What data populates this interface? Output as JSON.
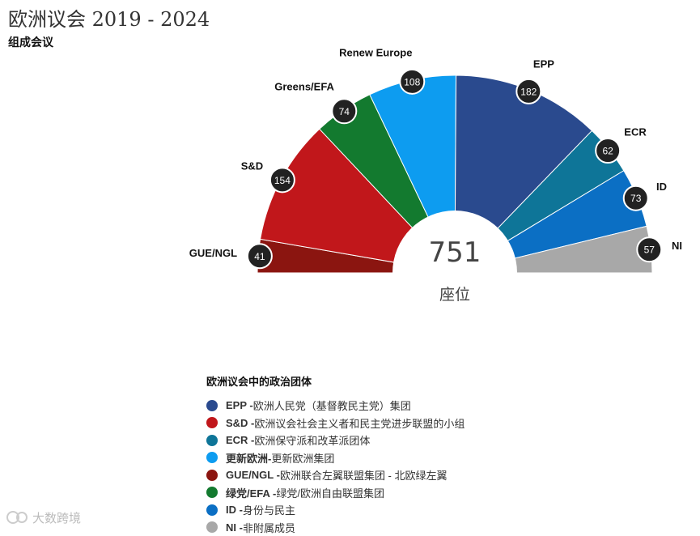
{
  "title": "欧洲议会 2019 - 2024",
  "subtitle": "组成会议",
  "chart_data": {
    "type": "parliament-semicircle",
    "title": "欧洲议会 2019 - 2024",
    "subtitle": "组成会议",
    "total": 751,
    "total_label": "751",
    "seats_label": "座位",
    "series": [
      {
        "name": "GUE/NGL",
        "label": "GUE/NGL",
        "value": 41,
        "color": "#8b1510"
      },
      {
        "name": "S&D",
        "label": "S&D",
        "value": 154,
        "color": "#c1171b"
      },
      {
        "name": "Greens/EFA",
        "label": "Greens/EFA",
        "value": 74,
        "color": "#137a2f"
      },
      {
        "name": "Renew Europe",
        "label": "Renew Europe",
        "value": 108,
        "color": "#0d9cf0"
      },
      {
        "name": "EPP",
        "label": "EPP",
        "value": 182,
        "color": "#2a4a8e"
      },
      {
        "name": "ECR",
        "label": "ECR",
        "value": 62,
        "color": "#0e7598"
      },
      {
        "name": "ID",
        "label": "ID",
        "value": 73,
        "color": "#0b6fc4"
      },
      {
        "name": "NI",
        "label": "NI",
        "value": 57,
        "color": "#a8a8a8"
      }
    ]
  },
  "legend": {
    "title": "欧洲议会中的政治团体",
    "items": [
      {
        "abbr": "EPP -",
        "desc": "欧洲人民党（基督教民主党）集团",
        "color": "#2a4a8e"
      },
      {
        "abbr": "S&D -",
        "desc": "欧洲议会社会主义者和民主党进步联盟的小组",
        "color": "#c1171b"
      },
      {
        "abbr": "ECR -",
        "desc": "欧洲保守派和改革派团体",
        "color": "#0e7598"
      },
      {
        "abbr": "更新欧洲-",
        "desc": "更新欧洲集团",
        "color": "#0d9cf0"
      },
      {
        "abbr": "GUE/NGL -",
        "desc": "欧洲联合左翼联盟集团 - 北欧绿左翼",
        "color": "#8b1510"
      },
      {
        "abbr": "绿党/EFA -",
        "desc": "绿党/欧洲自由联盟集团",
        "color": "#137a2f"
      },
      {
        "abbr": "ID -",
        "desc": "身份与民主",
        "color": "#0b6fc4"
      },
      {
        "abbr": "NI -",
        "desc": "非附属成员",
        "color": "#a8a8a8"
      }
    ]
  },
  "watermark": {
    "text": "大数跨境"
  }
}
